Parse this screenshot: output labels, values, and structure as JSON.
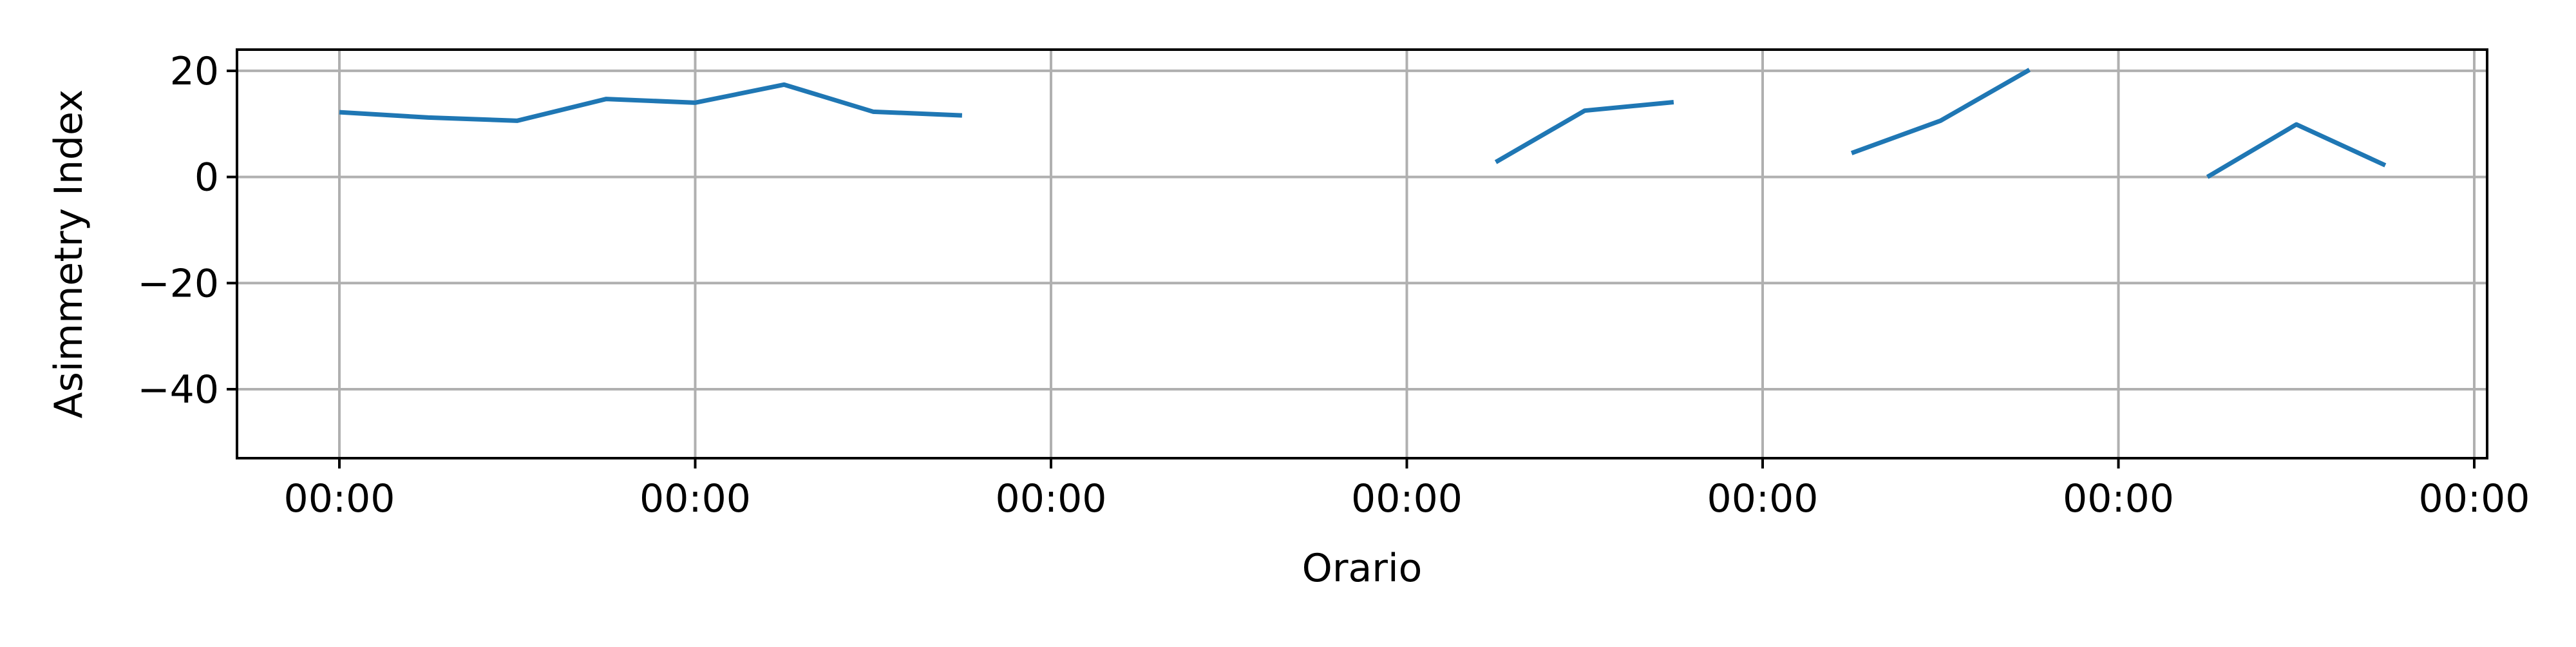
{
  "chart_data": {
    "type": "line",
    "title": "",
    "xlabel": "Orario",
    "ylabel": "Asimmetry Index",
    "x_tick_labels": [
      "00:00",
      "00:00",
      "00:00",
      "00:00",
      "00:00",
      "00:00",
      "00:00"
    ],
    "y_ticks": [
      -40,
      -20,
      0,
      20
    ],
    "ylim": [
      -53,
      24
    ],
    "grid": true,
    "colors": {
      "line": "#1f77b4",
      "grid": "#b0b0b0",
      "axis": "#000000"
    },
    "series": [
      {
        "values": [
          12.2,
          11.2,
          10.6,
          14.7,
          14.0,
          17.4,
          12.3,
          11.6,
          null,
          null,
          null,
          null,
          null,
          2.8,
          12.5,
          14.1,
          null,
          4.5,
          10.6,
          20.2,
          null,
          0.0,
          9.9,
          2.2
        ]
      }
    ]
  }
}
